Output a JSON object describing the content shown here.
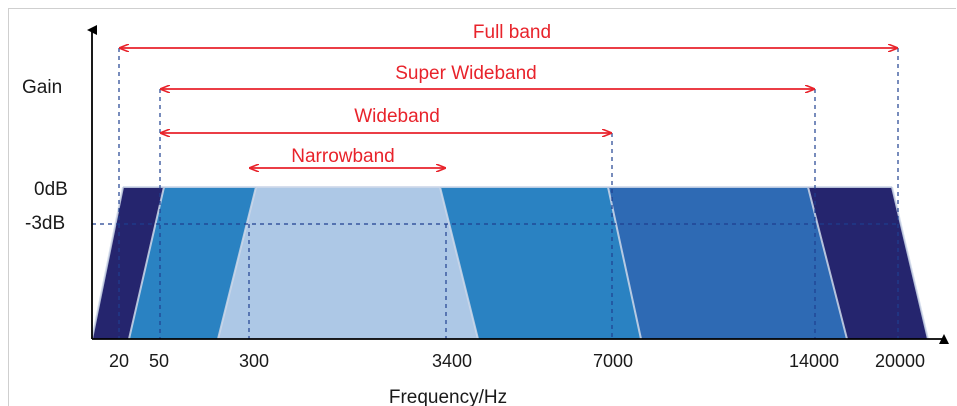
{
  "axes": {
    "y_label": "Gain",
    "x_label": "Frequency/Hz",
    "gain_ticks": [
      "0dB",
      "-3dB"
    ],
    "freq_ticks": [
      "20",
      "50",
      "300",
      "3400",
      "7000",
      "14000",
      "20000"
    ]
  },
  "bands": [
    {
      "name": "Full band",
      "from": "20",
      "to": "20000"
    },
    {
      "name": "Super Wideband",
      "from": "50",
      "to": "14000"
    },
    {
      "name": "Wideband",
      "from": "50",
      "to": "7000"
    },
    {
      "name": "Narrowband",
      "from": "300",
      "to": "3400"
    }
  ],
  "colors": {
    "full_band": "#25256e",
    "super_wideband": "#2e6ab4",
    "wideband": "#2a82c2",
    "narrowband": "#adc8e6",
    "arrow": "#e8232b",
    "guide": "#1f3f8f",
    "axis": "#000000"
  }
}
